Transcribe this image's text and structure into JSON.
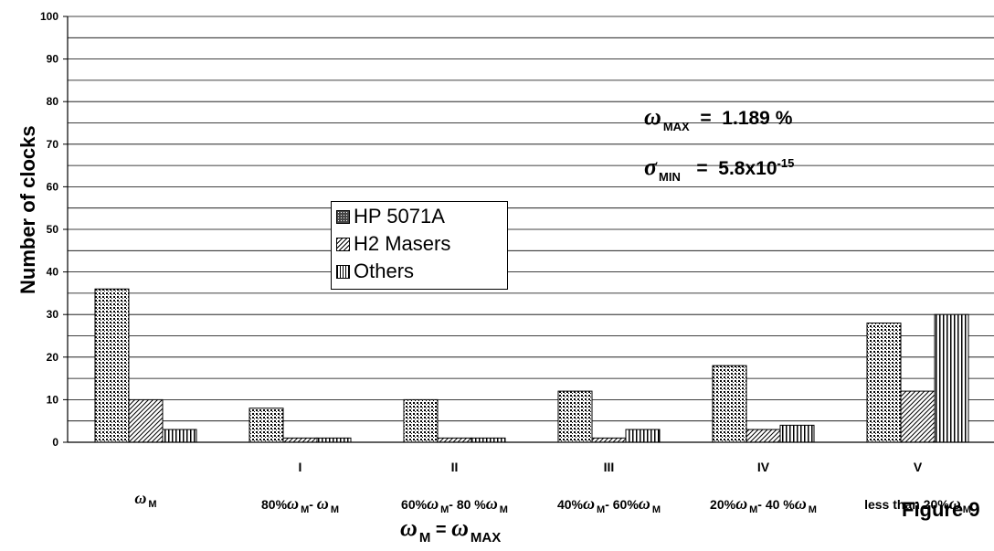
{
  "chart_data": {
    "type": "bar",
    "categories": [
      "ωM",
      "I",
      "II",
      "III",
      "IV",
      "V"
    ],
    "category_subtitles": [
      "",
      "80%ωM- ωM",
      "60%ωM- 80 %ωM",
      "40%ωM- 60%ωM",
      "20%ωM- 40 %ωM",
      "less than 20%ωM"
    ],
    "series": [
      {
        "name": "HP 5071A",
        "values": [
          36,
          8,
          10,
          12,
          18,
          28
        ],
        "pattern": "dots"
      },
      {
        "name": "H2 Masers",
        "values": [
          10,
          1,
          1,
          1,
          3,
          12
        ],
        "pattern": "diagonal"
      },
      {
        "name": "Others",
        "values": [
          3,
          1,
          1,
          3,
          4,
          30
        ],
        "pattern": "vertical"
      }
    ],
    "ylabel": "Number of clocks",
    "xlabel": "ωM = ωMAX",
    "ylim": [
      0,
      100
    ],
    "yticks": [
      0,
      10,
      20,
      30,
      40,
      50,
      60,
      70,
      80,
      90,
      100
    ],
    "grid": true,
    "legend_position": "center",
    "annotations": [
      "ωMAX = 1.189 %",
      "σMIN = 5.8x10-15"
    ],
    "figure_label": "Figure 9"
  }
}
